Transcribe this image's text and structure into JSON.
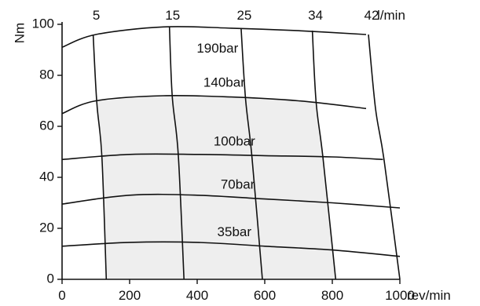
{
  "chart_data": {
    "type": "line",
    "title": "",
    "xlabel": "rev/min",
    "ylabel": "Nm",
    "flow_unit_label": "l/min",
    "xlim": [
      0,
      1000
    ],
    "ylim": [
      0,
      100
    ],
    "x_ticks": [
      0,
      200,
      400,
      600,
      800,
      1000
    ],
    "y_ticks": [
      0,
      20,
      40,
      60,
      80,
      100
    ],
    "grid": false,
    "legend": "none",
    "colors": {
      "line": "#111111",
      "fill": "#eeeeee"
    },
    "pressure_series": [
      {
        "name": "190bar",
        "x": [
          0,
          100,
          300,
          500,
          700,
          900
        ],
        "y": [
          91,
          96,
          99,
          98.5,
          97.5,
          96
        ]
      },
      {
        "name": "140bar",
        "x": [
          0,
          100,
          300,
          500,
          700,
          900
        ],
        "y": [
          65,
          70,
          72,
          71.5,
          70,
          67
        ]
      },
      {
        "name": "100bar",
        "x": [
          0,
          200,
          400,
          600,
          800,
          950
        ],
        "y": [
          47,
          49,
          49,
          48.5,
          48,
          47
        ]
      },
      {
        "name": "70bar",
        "x": [
          0,
          200,
          400,
          600,
          800,
          1000
        ],
        "y": [
          29.5,
          33,
          33,
          31.5,
          30,
          28
        ]
      },
      {
        "name": "35bar",
        "x": [
          0,
          200,
          400,
          600,
          800,
          1000
        ],
        "y": [
          13,
          14.5,
          14.5,
          13,
          11.5,
          9
        ]
      }
    ],
    "flow_lines": [
      {
        "name": "5",
        "x": [
          92,
          103,
          118,
          131
        ],
        "y": [
          96,
          69,
          48,
          0
        ]
      },
      {
        "name": "15",
        "x": [
          318,
          326,
          344,
          361
        ],
        "y": [
          99,
          72,
          49,
          0
        ]
      },
      {
        "name": "25",
        "x": [
          530,
          543,
          562,
          593
        ],
        "y": [
          98.5,
          71,
          48,
          0
        ]
      },
      {
        "name": "34",
        "x": [
          741,
          752,
          772,
          810
        ],
        "y": [
          97.5,
          69.5,
          48,
          0
        ]
      },
      {
        "name": "42",
        "x": [
          907,
          928,
          953,
          1000
        ],
        "y": [
          96,
          67,
          47,
          0
        ]
      }
    ]
  }
}
